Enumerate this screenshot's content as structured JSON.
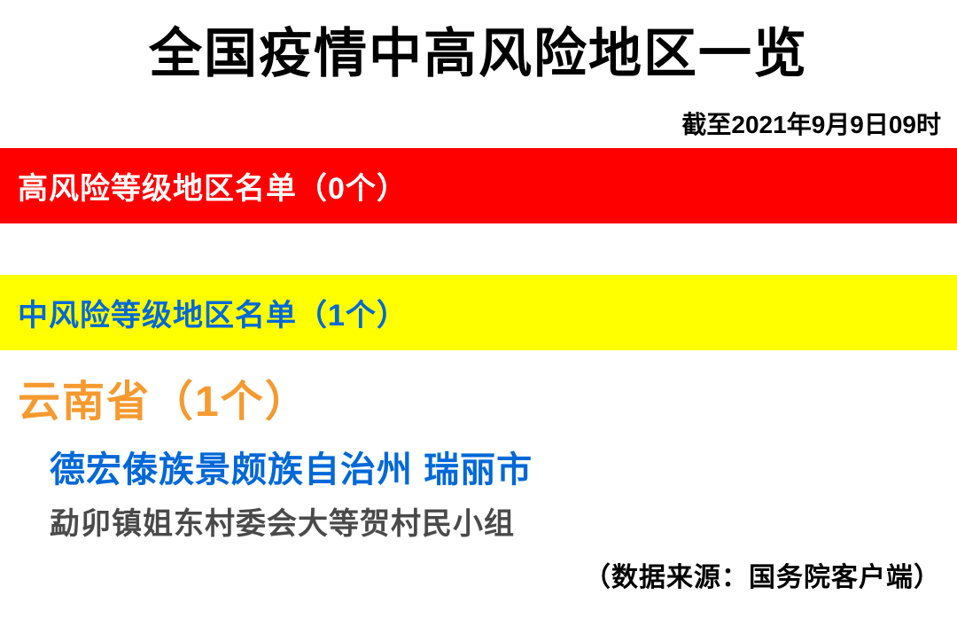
{
  "title": {
    "text": "全国疫情中高风险地区一览",
    "color": "#000000",
    "fontsize": 60
  },
  "timestamp": {
    "text": "截至2021年9月9日09时",
    "color": "#000000",
    "fontsize": 28
  },
  "high_risk_banner": {
    "text": "高风险等级地区名单（0个）",
    "background": "#fe0000",
    "text_color": "#ffffff",
    "fontsize": 34
  },
  "medium_risk_banner": {
    "text": "中风险等级地区名单（1个）",
    "background": "#ffff00",
    "text_color": "#0068d7",
    "fontsize": 34
  },
  "province": {
    "text": "云南省（1个）",
    "color": "#f59a2f",
    "fontsize": 48
  },
  "city": {
    "text": "德宏傣族景颇族自治州 瑞丽市",
    "color": "#0068d7",
    "fontsize": 40
  },
  "detail": {
    "text": "勐卯镇姐东村委会大等贺村民小组",
    "color": "#4a4a4a",
    "fontsize": 34
  },
  "source": {
    "text": "（数据来源：国务院客户端）",
    "color": "#000000",
    "fontsize": 30
  }
}
